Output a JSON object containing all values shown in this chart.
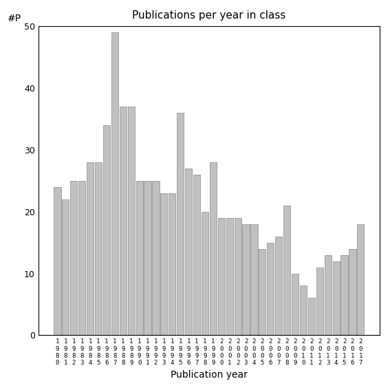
{
  "title": "Publications per year in class",
  "xlabel": "Publication year",
  "ylabel": "#P",
  "bar_color": "#c0c0c0",
  "edge_color": "#888888",
  "years": [
    1980,
    1981,
    1982,
    1983,
    1984,
    1985,
    1986,
    1987,
    1988,
    1989,
    1990,
    1991,
    1992,
    1993,
    1994,
    1995,
    1996,
    1997,
    1998,
    1999,
    2000,
    2001,
    2002,
    2003,
    2004,
    2005,
    2006,
    2007,
    2008,
    2009,
    2010,
    2011,
    2012,
    2013,
    2014,
    2015,
    2016,
    2017
  ],
  "values": [
    24,
    22,
    25,
    25,
    28,
    28,
    34,
    49,
    37,
    37,
    25,
    25,
    25,
    23,
    23,
    36,
    27,
    26,
    20,
    28,
    19,
    19,
    19,
    18,
    18,
    14,
    15,
    16,
    21,
    10,
    8,
    6,
    11,
    13,
    12,
    13,
    14,
    18
  ],
  "ylim": [
    0,
    50
  ],
  "yticks": [
    0,
    10,
    20,
    30,
    40,
    50
  ],
  "background_color": "#ffffff"
}
